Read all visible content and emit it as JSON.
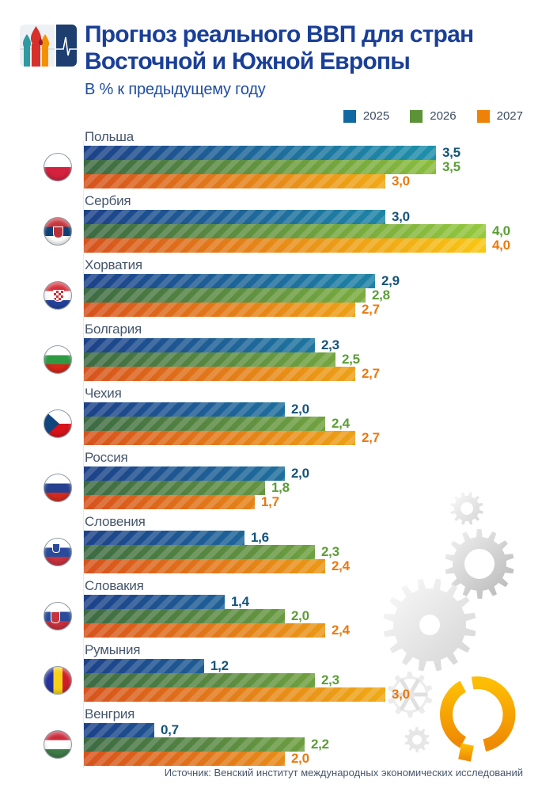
{
  "header": {
    "title_line1": "Прогноз реального ВВП для стран",
    "title_line2": "Восточной и Южной Европы",
    "subtitle": "В % к предыдущему году"
  },
  "legend": {
    "items": [
      {
        "label": "2025",
        "color": "#1268a0"
      },
      {
        "label": "2026",
        "color": "#5d9338"
      },
      {
        "label": "2027",
        "color": "#ee8208"
      }
    ]
  },
  "chart_data": {
    "type": "bar",
    "orientation": "horizontal",
    "unit": "% к предыдущему году",
    "xlim": [
      0,
      4.0
    ],
    "grid": false,
    "legend_position": "top-right",
    "categories": [
      "Польша",
      "Сербия",
      "Хорватия",
      "Болгария",
      "Чехия",
      "Россия",
      "Словения",
      "Словакия",
      "Румыния",
      "Венгрия"
    ],
    "flag_icons": [
      "poland",
      "serbia",
      "croatia",
      "bulgaria",
      "czechia",
      "russia",
      "slovenia",
      "slovakia",
      "romania",
      "hungary"
    ],
    "series": [
      {
        "name": "2025",
        "values": [
          3.5,
          3.0,
          2.9,
          2.3,
          2.0,
          2.0,
          1.6,
          1.4,
          1.2,
          0.7
        ]
      },
      {
        "name": "2026",
        "values": [
          3.5,
          4.0,
          2.8,
          2.5,
          2.4,
          1.8,
          2.3,
          2.0,
          2.3,
          2.2
        ]
      },
      {
        "name": "2027",
        "values": [
          3.0,
          4.0,
          2.7,
          2.7,
          2.7,
          1.7,
          2.4,
          2.4,
          3.0,
          2.0
        ]
      }
    ],
    "decimal_separator": ","
  },
  "colors": {
    "bar_2025_from": "#1d4289",
    "bar_2025_to": "#1f9cb0",
    "label_2025": "#14547a",
    "bar_2026_from": "#3c6a43",
    "bar_2026_to": "#95c93c",
    "label_2026": "#5a9e35",
    "bar_2027_from": "#d6531d",
    "bar_2027_to": "#f8c713",
    "label_2027": "#e87a10",
    "title": "#1a3f97"
  },
  "icons": {
    "publisher_logo": "kremlin-domes-and-ecg-logo",
    "background_decoration": "gray-gear-cluster",
    "brand_mark": "orange-broken-ring"
  },
  "source": "Источник: Венский институт международных экономических исследований"
}
